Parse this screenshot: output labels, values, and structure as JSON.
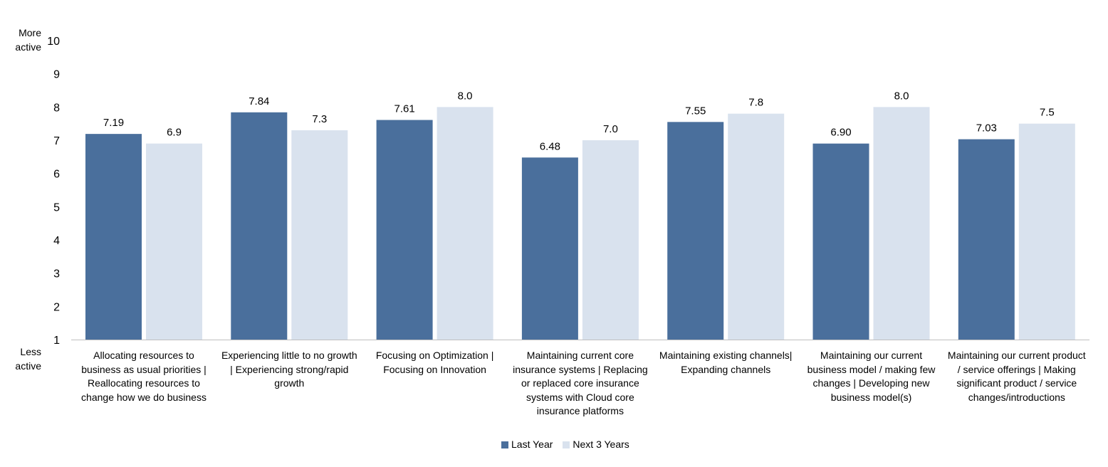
{
  "chart_data": {
    "type": "bar",
    "categories": [
      "Allocating resources to business as usual priorities | Reallocating resources to change how we do business",
      "Experiencing little to no growth | Experiencing strong/rapid growth",
      "Focusing on Optimization | Focusing on Innovation",
      "Maintaining current core insurance systems | Replacing or replaced core insurance systems with Cloud core insurance platforms",
      "Maintaining existing channels| Expanding channels",
      "Maintaining our current business model / making few changes | Developing new business model(s)",
      "Maintaining our current product / service offerings | Making significant product / service changes/introductions"
    ],
    "series": [
      {
        "name": "Last Year",
        "color": "#4a6f9c",
        "values": [
          7.19,
          7.84,
          7.61,
          6.48,
          7.55,
          6.9,
          7.03
        ],
        "labels": [
          "7.19",
          "7.84",
          "7.61",
          "6.48",
          "7.55",
          "6.90",
          "7.03"
        ]
      },
      {
        "name": "Next 3 Years",
        "color": "#d9e2ee",
        "values": [
          6.9,
          7.3,
          8.0,
          7.0,
          7.8,
          8.0,
          7.5
        ],
        "labels": [
          "6.9",
          "7.3",
          "8.0",
          "7.0",
          "7.8",
          "8.0",
          "7.5"
        ]
      }
    ],
    "ylim": [
      1,
      10
    ],
    "yticks": [
      "1",
      "2",
      "3",
      "4",
      "5",
      "6",
      "7",
      "8",
      "9",
      "10"
    ],
    "ylabel_top": "More active",
    "ylabel_bottom": "Less active",
    "grid": false,
    "legend": "bottom"
  }
}
